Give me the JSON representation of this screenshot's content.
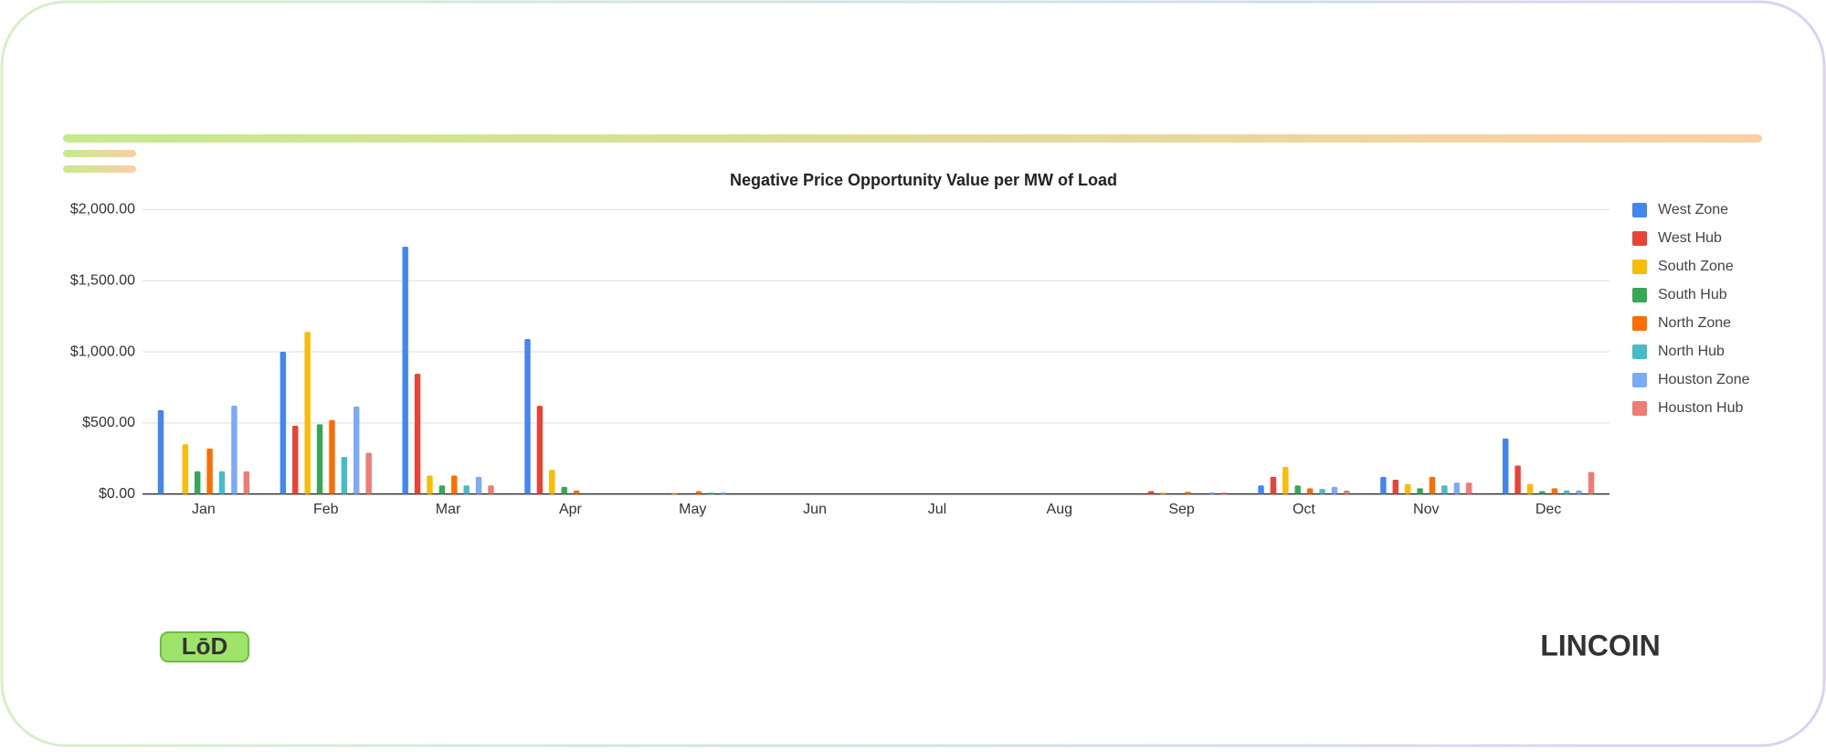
{
  "chart_data": {
    "type": "bar",
    "title": "Negative Price Opportunity Value per MW of Load",
    "categories": [
      "Jan",
      "Feb",
      "Mar",
      "Apr",
      "May",
      "Jun",
      "Jul",
      "Aug",
      "Sep",
      "Oct",
      "Nov",
      "Dec"
    ],
    "series": [
      {
        "name": "West Zone",
        "color": "#4285f4",
        "values": [
          590,
          1000,
          1740,
          1090,
          0,
          0,
          0,
          0,
          0,
          60,
          120,
          390
        ]
      },
      {
        "name": "West Hub",
        "color": "#ea4335",
        "values": [
          0,
          480,
          845,
          620,
          0,
          0,
          0,
          0,
          20,
          120,
          100,
          200
        ]
      },
      {
        "name": "South Zone",
        "color": "#fbbc04",
        "values": [
          350,
          1140,
          130,
          170,
          8,
          0,
          0,
          0,
          10,
          190,
          70,
          70
        ]
      },
      {
        "name": "South Hub",
        "color": "#34a853",
        "values": [
          160,
          490,
          60,
          50,
          0,
          0,
          0,
          0,
          0,
          60,
          40,
          20
        ]
      },
      {
        "name": "North Zone",
        "color": "#ff6d01",
        "values": [
          320,
          520,
          130,
          25,
          20,
          0,
          0,
          0,
          15,
          40,
          120,
          40
        ]
      },
      {
        "name": "North Hub",
        "color": "#46bdc6",
        "values": [
          160,
          260,
          60,
          0,
          10,
          0,
          0,
          0,
          0,
          35,
          60,
          25
        ]
      },
      {
        "name": "Houston Zone",
        "color": "#7baaf7",
        "values": [
          620,
          615,
          120,
          0,
          10,
          0,
          0,
          0,
          10,
          50,
          80,
          25
        ]
      },
      {
        "name": "Houston Hub",
        "color": "#f07b72",
        "values": [
          160,
          290,
          60,
          0,
          0,
          0,
          0,
          0,
          10,
          25,
          80,
          155
        ]
      }
    ],
    "ylim": [
      0,
      2000
    ],
    "yticks": [
      {
        "value": 0,
        "label": "$0.00"
      },
      {
        "value": 500,
        "label": "$500.00"
      },
      {
        "value": 1000,
        "label": "$1,000.00"
      },
      {
        "value": 1500,
        "label": "$1,500.00"
      },
      {
        "value": 2000,
        "label": "$2,000.00"
      }
    ],
    "grid": true,
    "legend": "right"
  },
  "brands": {
    "left": "LōD",
    "right": "LINCOIN"
  }
}
